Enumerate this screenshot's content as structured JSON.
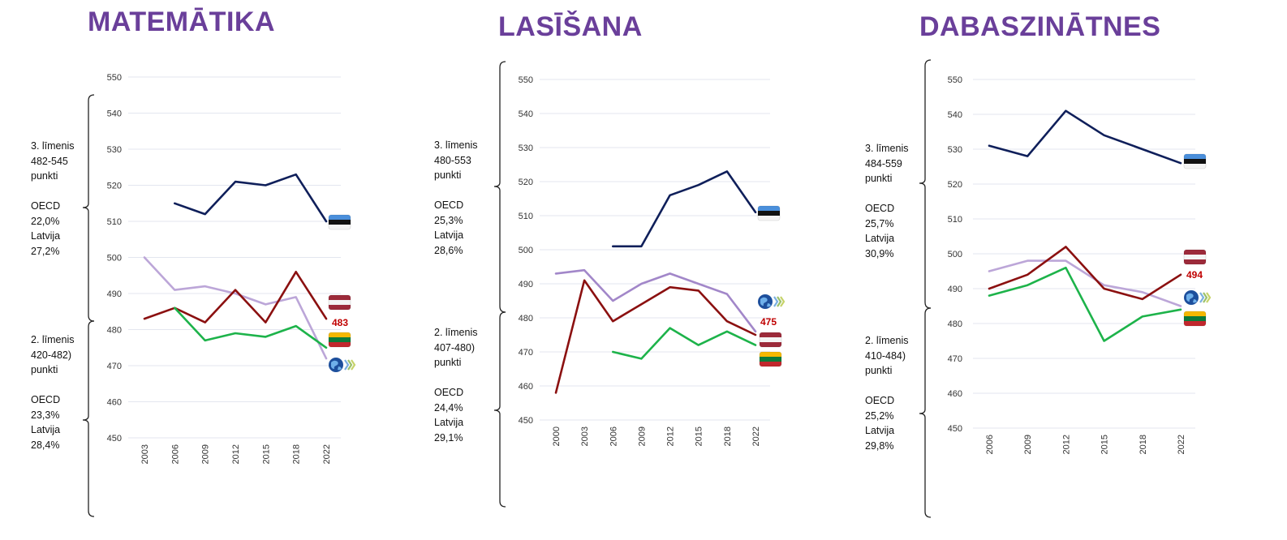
{
  "colors": {
    "title": "#6a3f9a",
    "grid": "#e3e6ef",
    "estonia": "#0f1f5a",
    "latvia": "#8b1010",
    "lithuania": "#1db34a",
    "oecd": "#bca6d8",
    "oecd_reading": "#a287c9",
    "bracket": "#222222"
  },
  "icons": {
    "estonia": "estonia-flag-icon",
    "latvia": "latvia-flag-icon",
    "lithuania": "lithuania-flag-icon",
    "oecd": "oecd-globe-icon"
  },
  "chart_data": [
    {
      "type": "line",
      "title": "MATEMĀTIKA",
      "x": [
        "2003",
        "2006",
        "2009",
        "2012",
        "2015",
        "2018",
        "2022"
      ],
      "ylim": [
        450,
        550
      ],
      "yticks": [
        450,
        460,
        470,
        480,
        490,
        500,
        510,
        520,
        530,
        540,
        550
      ],
      "grid": true,
      "series": [
        {
          "key": "estonia",
          "values": [
            null,
            515,
            512,
            521,
            520,
            523,
            510
          ]
        },
        {
          "key": "oecd",
          "values": [
            500,
            491,
            492,
            490,
            487,
            489,
            472
          ]
        },
        {
          "key": "latvia",
          "values": [
            483,
            486,
            482,
            491,
            482,
            496,
            483
          ]
        },
        {
          "key": "lithuania",
          "values": [
            null,
            486,
            477,
            479,
            478,
            481,
            475
          ]
        }
      ],
      "end_label": {
        "series": "latvia",
        "text": "483"
      },
      "levels": [
        {
          "text": "3. līmenis\n482-545\npunkti\n\nOECD\n22,0%\nLatvija\n27,2%"
        },
        {
          "text": "2. līmenis\n420-482)\npunkti\n\nOECD\n23,3%\nLatvija\n28,4%"
        }
      ]
    },
    {
      "type": "line",
      "title": "LASĪŠANA",
      "x": [
        "2000",
        "2003",
        "2006",
        "2009",
        "2012",
        "2015",
        "2018",
        "2022"
      ],
      "ylim": [
        450,
        550
      ],
      "yticks": [
        450,
        460,
        470,
        480,
        490,
        500,
        510,
        520,
        530,
        540,
        550
      ],
      "grid": true,
      "series": [
        {
          "key": "estonia",
          "values": [
            null,
            null,
            501,
            501,
            516,
            519,
            523,
            511
          ]
        },
        {
          "key": "oecd",
          "values": [
            493,
            494,
            485,
            490,
            493,
            490,
            487,
            476
          ]
        },
        {
          "key": "latvia",
          "values": [
            458,
            491,
            479,
            484,
            489,
            488,
            479,
            475
          ]
        },
        {
          "key": "lithuania",
          "values": [
            null,
            null,
            470,
            468,
            477,
            472,
            476,
            472
          ]
        }
      ],
      "end_label": {
        "series": "latvia",
        "text": "475"
      },
      "levels": [
        {
          "text": "3. līmenis\n480-553\npunkti\n\nOECD\n25,3%\nLatvija\n28,6%"
        },
        {
          "text": "2. līmenis\n407-480)\npunkti\n\nOECD\n24,4%\nLatvija\n29,1%"
        }
      ]
    },
    {
      "type": "line",
      "title": "DABASZINĀTNES",
      "x": [
        "2006",
        "2009",
        "2012",
        "2015",
        "2018",
        "2022"
      ],
      "ylim": [
        450,
        550
      ],
      "yticks": [
        450,
        460,
        470,
        480,
        490,
        500,
        510,
        520,
        530,
        540,
        550
      ],
      "grid": true,
      "series": [
        {
          "key": "estonia",
          "values": [
            531,
            528,
            541,
            534,
            530,
            526
          ]
        },
        {
          "key": "oecd",
          "values": [
            495,
            498,
            498,
            491,
            489,
            485
          ]
        },
        {
          "key": "latvia",
          "values": [
            490,
            494,
            502,
            490,
            487,
            494
          ]
        },
        {
          "key": "lithuania",
          "values": [
            488,
            491,
            496,
            475,
            482,
            484
          ]
        }
      ],
      "end_label": {
        "series": "latvia",
        "text": "494"
      },
      "levels": [
        {
          "text": "3. līmenis\n484-559\npunkti\n\nOECD\n25,7%\nLatvija\n30,9%"
        },
        {
          "text": "2. līmenis\n410-484)\npunkti\n\nOECD\n25,2%\nLatvija\n29,8%"
        }
      ]
    }
  ]
}
